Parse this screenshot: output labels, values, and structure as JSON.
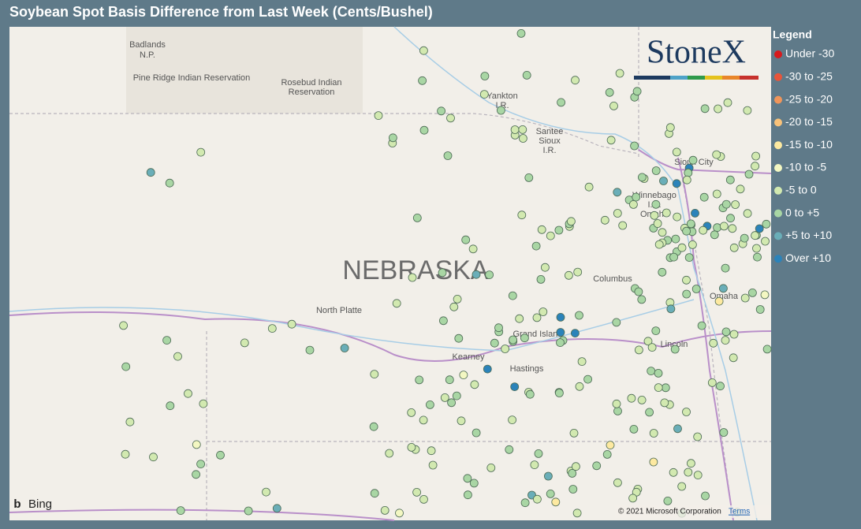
{
  "header": {
    "title": "Soybean Spot Basis Difference from Last Week (Cents/Bushel)",
    "logo": "StoneX"
  },
  "legend": {
    "title": "Legend",
    "items": [
      {
        "label": "Under -30",
        "color": "#d7191c"
      },
      {
        "label": "-30 to -25",
        "color": "#e8553a"
      },
      {
        "label": "-25 to -20",
        "color": "#f0955a"
      },
      {
        "label": "-20 to -15",
        "color": "#f8c27a"
      },
      {
        "label": "-15 to -10",
        "color": "#fde9a0"
      },
      {
        "label": "-10 to -5",
        "color": "#f3f7c2"
      },
      {
        "label": "-5 to 0",
        "color": "#d2e9b0"
      },
      {
        "label": "0 to +5",
        "color": "#a9d6a4"
      },
      {
        "label": "+5 to +10",
        "color": "#6aaeb8"
      },
      {
        "label": "Over +10",
        "color": "#2b83ba"
      }
    ]
  },
  "map_labels": [
    "Badlands",
    "N.P.",
    "Pine Ridge Indian Reservation",
    "Rosebud Indian",
    "Reservation",
    "Yankton",
    "I.R.",
    "Santee",
    "Sioux",
    "I.R.",
    "Sioux City",
    "Winnebago",
    "I.R.",
    "Omaha",
    "NEBRASKA",
    "North Platte",
    "Columbus",
    "Grand Island",
    "Kearney",
    "Hastings",
    "Lincoln",
    "Omaha"
  ],
  "footer": {
    "brand": "Bing",
    "copyright": "© 2021 Microsoft Corporation",
    "terms": "Terms"
  }
}
